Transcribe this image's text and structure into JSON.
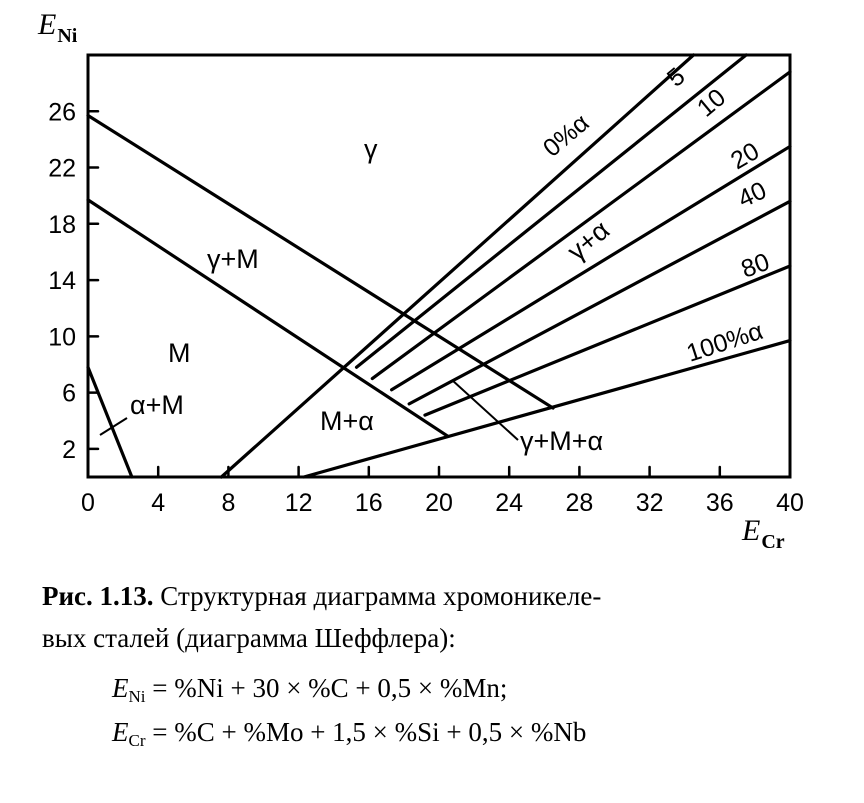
{
  "axes": {
    "y_label_main": "E",
    "y_label_sub": "Ni",
    "x_label_main": "E",
    "x_label_sub": "Cr",
    "x_ticks": [
      "0",
      "4",
      "8",
      "12",
      "16",
      "20",
      "24",
      "28",
      "32",
      "36",
      "40"
    ],
    "y_ticks": [
      "2",
      "6",
      "10",
      "14",
      "18",
      "22",
      "26"
    ],
    "x_range": [
      0,
      40
    ],
    "y_range": [
      0,
      30
    ]
  },
  "regions": {
    "gamma": "γ",
    "gamma_m": "γ+M",
    "m": "M",
    "alpha_m": "α+M",
    "m_alpha": "M+α",
    "gamma_alpha": "γ+α",
    "gamma_m_alpha": "γ+M+α"
  },
  "ferrite_lines": [
    {
      "label": "0%α",
      "start": [
        7.6,
        0
      ],
      "end": [
        34.5,
        30
      ]
    },
    {
      "label": "5",
      "start": [
        15.3,
        7.8
      ],
      "end": [
        37.5,
        30
      ]
    },
    {
      "label": "10",
      "start": [
        16.2,
        7.0
      ],
      "end": [
        40,
        28.8
      ]
    },
    {
      "label": "20",
      "start": [
        17.3,
        6.2
      ],
      "end": [
        40,
        23.5
      ]
    },
    {
      "label": "40",
      "start": [
        18.3,
        5.2
      ],
      "end": [
        40,
        19.6
      ]
    },
    {
      "label": "80",
      "start": [
        19.2,
        4.4
      ],
      "end": [
        40,
        15.0
      ]
    },
    {
      "label": "100%α",
      "start": [
        12.3,
        0
      ],
      "end": [
        40,
        9.7
      ]
    }
  ],
  "boundary_lines": [
    {
      "start": [
        0,
        25.7
      ],
      "end": [
        26.5,
        4.9
      ]
    },
    {
      "start": [
        0,
        19.7
      ],
      "end": [
        20.5,
        2.9
      ]
    },
    {
      "start": [
        0,
        7.8
      ],
      "end": [
        2.5,
        0
      ]
    }
  ],
  "caption": {
    "title": "Рис. 1.13.",
    "text_line1": "Структурная диаграмма хромоникеле-",
    "text_line2": "вых сталей (диаграмма Шеффлера):"
  },
  "formulas": {
    "eni_main": "E",
    "eni_sub": "Ni",
    "eni_rhs": "= %Ni + 30 × %C + 0,5 × %Mn;",
    "ecr_main": "E",
    "ecr_sub": "Cr",
    "ecr_rhs": "= %C + %Mo + 1,5 × %Si + 0,5 × %Nb"
  }
}
